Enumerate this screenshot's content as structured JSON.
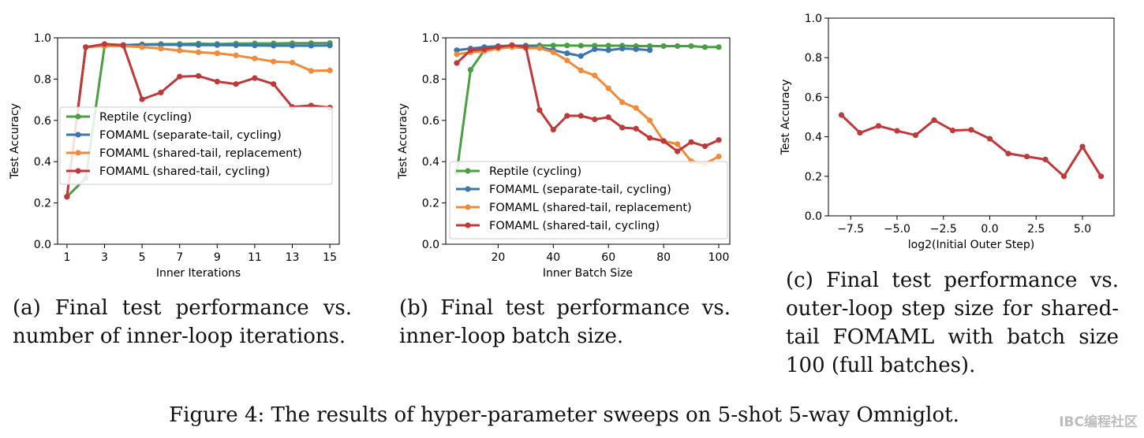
{
  "figure_caption": "Figure 4: The results of hyper-parameter sweeps on 5-shot 5-way Omniglot.",
  "watermark": "IBC编程社区",
  "colors": {
    "reptile": "#4a9f43",
    "separate_tail": "#3b76af",
    "replacement": "#f08b39",
    "shared_cycling": "#c0393a"
  },
  "chart_data": [
    {
      "id": "a",
      "type": "line",
      "caption": "(a) Final test performance vs. number of inner-loop iterations.",
      "xlabel": "Inner Iterations",
      "ylabel": "Test Accuracy",
      "xlim": [
        0.5,
        15.5
      ],
      "ylim": [
        0.0,
        1.0
      ],
      "xticks": [
        1,
        3,
        5,
        7,
        9,
        11,
        13,
        15
      ],
      "yticks": [
        0.0,
        0.2,
        0.4,
        0.6,
        0.8,
        1.0
      ],
      "legend": "center-left",
      "series": [
        {
          "name": "Reptile (cycling)",
          "color": "#4a9f43",
          "x": [
            1,
            2,
            3,
            4,
            5,
            6,
            7,
            8,
            9,
            10,
            11,
            12,
            13,
            14,
            15
          ],
          "y": [
            0.23,
            0.32,
            0.96,
            0.965,
            0.968,
            0.97,
            0.97,
            0.972,
            0.97,
            0.972,
            0.973,
            0.973,
            0.974,
            0.974,
            0.975
          ]
        },
        {
          "name": "FOMAML (separate-tail, cycling)",
          "color": "#3b76af",
          "x": [
            1,
            2,
            3,
            4,
            5,
            6,
            7,
            8,
            9,
            10,
            11,
            12,
            13,
            14,
            15
          ],
          "y": [
            0.23,
            0.955,
            0.962,
            0.965,
            0.967,
            0.966,
            0.966,
            0.965,
            0.965,
            0.964,
            0.963,
            0.962,
            0.962,
            0.962,
            0.963
          ]
        },
        {
          "name": "FOMAML (shared-tail, replacement)",
          "color": "#f08b39",
          "x": [
            1,
            2,
            3,
            4,
            5,
            6,
            7,
            8,
            9,
            10,
            11,
            12,
            13,
            14,
            15
          ],
          "y": [
            0.23,
            0.955,
            0.96,
            0.96,
            0.955,
            0.948,
            0.938,
            0.93,
            0.925,
            0.915,
            0.9,
            0.885,
            0.88,
            0.84,
            0.842
          ]
        },
        {
          "name": "FOMAML (shared-tail, cycling)",
          "color": "#c0393a",
          "x": [
            1,
            2,
            3,
            4,
            5,
            6,
            7,
            8,
            9,
            10,
            11,
            12,
            13,
            14,
            15
          ],
          "y": [
            0.23,
            0.955,
            0.97,
            0.965,
            0.702,
            0.735,
            0.812,
            0.815,
            0.788,
            0.776,
            0.805,
            0.776,
            0.665,
            0.672,
            0.662
          ]
        }
      ]
    },
    {
      "id": "b",
      "type": "line",
      "caption": "(b) Final test performance vs. inner-loop batch size.",
      "xlabel": "Inner Batch Size",
      "ylabel": "Test Accuracy",
      "xlim": [
        1,
        104
      ],
      "ylim": [
        0.0,
        1.0
      ],
      "xticks": [
        20,
        40,
        60,
        80,
        100
      ],
      "yticks": [
        0.0,
        0.2,
        0.4,
        0.6,
        0.8,
        1.0
      ],
      "legend": "lower-left",
      "series": [
        {
          "name": "Reptile (cycling)",
          "color": "#4a9f43",
          "x": [
            5,
            10,
            15,
            20,
            25,
            30,
            35,
            40,
            45,
            50,
            55,
            60,
            65,
            70,
            75,
            80,
            85,
            90,
            95,
            100
          ],
          "y": [
            0.35,
            0.845,
            0.94,
            0.955,
            0.96,
            0.962,
            0.963,
            0.963,
            0.963,
            0.962,
            0.962,
            0.962,
            0.962,
            0.96,
            0.96,
            0.96,
            0.96,
            0.96,
            0.955,
            0.955
          ]
        },
        {
          "name": "FOMAML (separate-tail, cycling)",
          "color": "#3b76af",
          "x": [
            5,
            10,
            15,
            20,
            25,
            30,
            35,
            40,
            45,
            50,
            55,
            60,
            65,
            70,
            75
          ],
          "y": [
            0.94,
            0.948,
            0.955,
            0.96,
            0.962,
            0.962,
            0.955,
            0.94,
            0.925,
            0.912,
            0.945,
            0.94,
            0.948,
            0.945,
            0.94
          ]
        },
        {
          "name": "FOMAML (shared-tail, replacement)",
          "color": "#f08b39",
          "x": [
            5,
            10,
            15,
            20,
            25,
            30,
            35,
            40,
            45,
            50,
            55,
            60,
            65,
            70,
            75,
            80,
            85,
            90,
            95,
            100
          ],
          "y": [
            0.92,
            0.93,
            0.935,
            0.948,
            0.955,
            0.95,
            0.95,
            0.93,
            0.89,
            0.842,
            0.818,
            0.755,
            0.688,
            0.66,
            0.6,
            0.5,
            0.485,
            0.402,
            0.39,
            0.425
          ]
        },
        {
          "name": "FOMAML (shared-tail, cycling)",
          "color": "#c0393a",
          "x": [
            5,
            10,
            15,
            20,
            25,
            30,
            35,
            40,
            45,
            50,
            55,
            60,
            65,
            70,
            75,
            80,
            85,
            90,
            95,
            100
          ],
          "y": [
            0.878,
            0.94,
            0.945,
            0.955,
            0.965,
            0.955,
            0.65,
            0.555,
            0.622,
            0.622,
            0.605,
            0.615,
            0.565,
            0.56,
            0.515,
            0.5,
            0.45,
            0.495,
            0.475,
            0.505
          ]
        }
      ]
    },
    {
      "id": "c",
      "type": "line",
      "caption": "(c) Final test performance vs. outer-loop step size for shared-tail FOMAML with batch size 100 (full batches).",
      "xlabel": "log2(Initial Outer Step)",
      "ylabel": "Test Accuracy",
      "xlim": [
        -8.7,
        6.7
      ],
      "ylim": [
        0.0,
        1.0
      ],
      "xticks": [
        -7.5,
        -5.0,
        -2.5,
        0.0,
        2.5,
        5.0
      ],
      "xtick_labels": [
        "−7.5",
        "−5.0",
        "−2.5",
        "0.0",
        "2.5",
        "5.0"
      ],
      "yticks": [
        0.0,
        0.2,
        0.4,
        0.6,
        0.8,
        1.0
      ],
      "series": [
        {
          "color": "#c0393a",
          "x": [
            -8,
            -7,
            -6,
            -5,
            -4,
            -3,
            -2,
            -1,
            0,
            1,
            2,
            3,
            4,
            5,
            6
          ],
          "y": [
            0.51,
            0.42,
            0.455,
            0.43,
            0.408,
            0.484,
            0.432,
            0.435,
            0.39,
            0.315,
            0.3,
            0.285,
            0.2,
            0.35,
            0.2
          ]
        }
      ]
    }
  ]
}
